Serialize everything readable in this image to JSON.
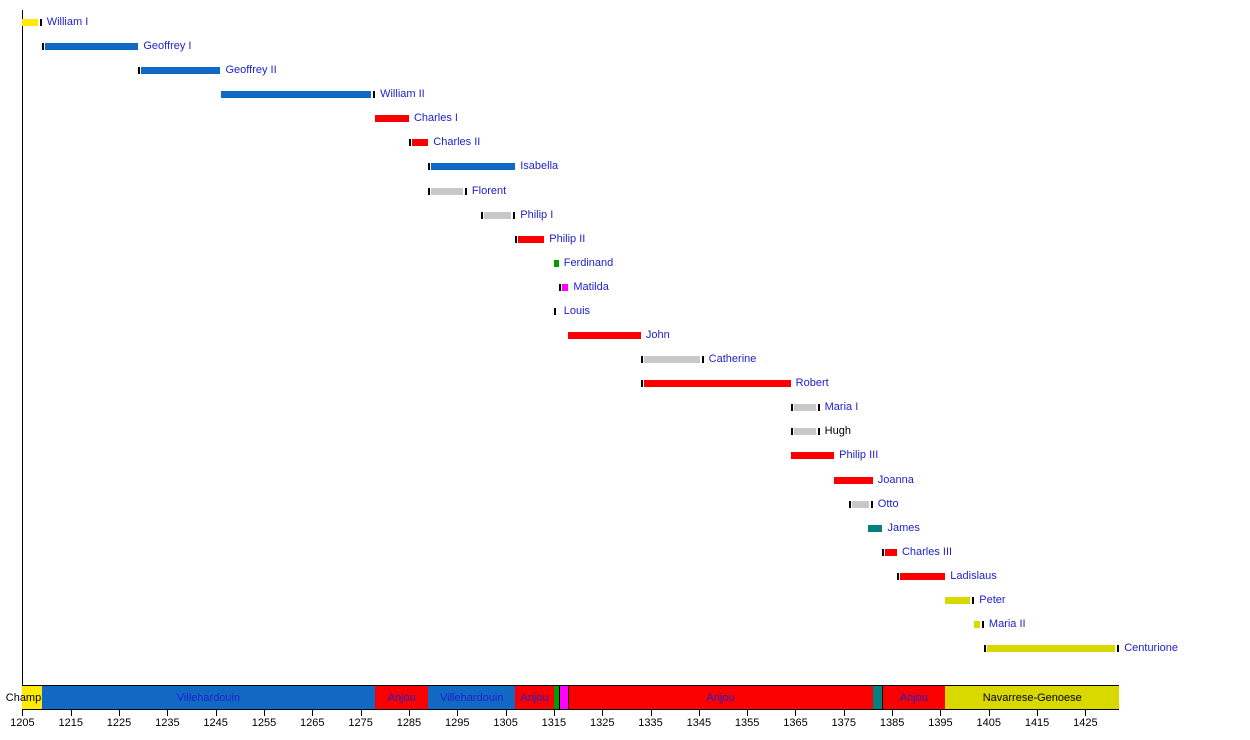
{
  "chart_data": {
    "type": "timeline",
    "x_axis": {
      "min": 1205,
      "max": 1432,
      "tick_interval": 10,
      "tick_years": [
        1205,
        1215,
        1225,
        1235,
        1245,
        1255,
        1265,
        1275,
        1285,
        1295,
        1305,
        1315,
        1325,
        1335,
        1345,
        1355,
        1365,
        1375,
        1385,
        1395,
        1405,
        1415,
        1425
      ]
    },
    "people": [
      {
        "label": "William I",
        "from": 1205,
        "till": 1209,
        "color": "champlitte_yellow",
        "label_color": "link_blue",
        "marks": "right"
      },
      {
        "label": "Geoffrey I",
        "from": 1209,
        "till": 1229,
        "color": "villehardouin_blue",
        "label_color": "link_blue",
        "marks": "left"
      },
      {
        "label": "Geoffrey II",
        "from": 1229,
        "till": 1246,
        "color": "villehardouin_blue",
        "label_color": "link_blue",
        "marks": "left"
      },
      {
        "label": "William II",
        "from": 1246,
        "till": 1278,
        "color": "villehardouin_blue",
        "label_color": "link_blue",
        "marks": "right"
      },
      {
        "label": "Charles I",
        "from": 1278,
        "till": 1285,
        "color": "anjou_red",
        "label_color": "link_blue",
        "marks": "none"
      },
      {
        "label": "Charles II",
        "from": 1285,
        "till": 1289,
        "color": "anjou_red",
        "label_color": "link_blue",
        "marks": "left"
      },
      {
        "label": "Isabella",
        "from": 1289,
        "till": 1307,
        "color": "villehardouin_blue",
        "label_color": "link_blue",
        "marks": "left"
      },
      {
        "label": "Florent",
        "from": 1289,
        "till": 1297,
        "color": "consort_gray",
        "label_color": "link_blue",
        "marks": "both"
      },
      {
        "label": "Philip I",
        "from": 1300,
        "till": 1307,
        "color": "consort_gray",
        "label_color": "link_blue",
        "marks": "both"
      },
      {
        "label": "Philip II",
        "from": 1307,
        "till": 1313,
        "color": "anjou_red",
        "label_color": "link_blue",
        "marks": "left"
      },
      {
        "label": "Ferdinand",
        "from": 1315,
        "till": 1316,
        "color": "majorca_green",
        "label_color": "link_blue",
        "marks": "none"
      },
      {
        "label": "Matilda",
        "from": 1316,
        "till": 1318,
        "color": "hainaut_magenta",
        "label_color": "link_blue",
        "marks": "left"
      },
      {
        "label": "Louis",
        "from": 1315,
        "till": 1316,
        "color": "tick_black",
        "label_color": "link_blue",
        "marks": "only"
      },
      {
        "label": "John",
        "from": 1318,
        "till": 1333,
        "color": "anjou_red",
        "label_color": "link_blue",
        "marks": "none"
      },
      {
        "label": "Catherine",
        "from": 1333,
        "till": 1346,
        "color": "consort_gray",
        "label_color": "link_blue",
        "marks": "both"
      },
      {
        "label": "Robert",
        "from": 1333,
        "till": 1364,
        "color": "anjou_red",
        "label_color": "link_blue",
        "marks": "left"
      },
      {
        "label": "Maria I",
        "from": 1364,
        "till": 1370,
        "color": "consort_gray",
        "label_color": "link_blue",
        "marks": "both"
      },
      {
        "label": "Hugh",
        "from": 1364,
        "till": 1370,
        "color": "consort_gray",
        "label_color": "plain_black",
        "marks": "both"
      },
      {
        "label": "Philip III",
        "from": 1364,
        "till": 1373,
        "color": "anjou_red",
        "label_color": "link_blue",
        "marks": "none"
      },
      {
        "label": "Joanna",
        "from": 1373,
        "till": 1381,
        "color": "anjou_red",
        "label_color": "link_blue",
        "marks": "none"
      },
      {
        "label": "Otto",
        "from": 1376,
        "till": 1381,
        "color": "consort_gray",
        "label_color": "link_blue",
        "marks": "both"
      },
      {
        "label": "James",
        "from": 1380,
        "till": 1383,
        "color": "baux_teal",
        "label_color": "link_blue",
        "marks": "none"
      },
      {
        "label": "Charles III",
        "from": 1383,
        "till": 1386,
        "color": "anjou_red",
        "label_color": "link_blue",
        "marks": "left"
      },
      {
        "label": "Ladislaus",
        "from": 1386,
        "till": 1396,
        "color": "anjou_red",
        "label_color": "link_blue",
        "marks": "left"
      },
      {
        "label": "Peter",
        "from": 1396,
        "till": 1402,
        "color": "navarrese_yellow",
        "label_color": "link_blue",
        "marks": "right"
      },
      {
        "label": "Maria II",
        "from": 1402,
        "till": 1404,
        "color": "navarrese_yellow",
        "label_color": "link_blue",
        "marks": "right"
      },
      {
        "label": "Centurione",
        "from": 1404,
        "till": 1432,
        "color": "navarrese_yellow",
        "label_color": "link_blue",
        "marks": "both"
      }
    ],
    "dynasty_band": [
      {
        "label": "Champlitte",
        "from": 1205,
        "till": 1209,
        "color": "champlitte_yellow",
        "label_color": "plain_black"
      },
      {
        "label": "Villehardouin",
        "from": 1209,
        "till": 1278,
        "color": "villehardouin_blue",
        "label_color": "link_blue"
      },
      {
        "label": "Anjou",
        "from": 1278,
        "till": 1289,
        "color": "anjou_red",
        "label_color": "link_blue"
      },
      {
        "label": "Villehardouin",
        "from": 1289,
        "till": 1307,
        "color": "villehardouin_blue",
        "label_color": "link_blue"
      },
      {
        "label": "Anjou",
        "from": 1307,
        "till": 1315,
        "color": "anjou_red",
        "label_color": "link_blue"
      },
      {
        "label": "",
        "from": 1315,
        "till": 1316,
        "color": "majorca_green",
        "label_color": "plain_black"
      },
      {
        "label": "",
        "from": 1316,
        "till": 1318,
        "color": "hainaut_magenta",
        "label_color": "plain_black"
      },
      {
        "label": "Anjou",
        "from": 1318,
        "till": 1381,
        "color": "anjou_red",
        "label_color": "link_blue"
      },
      {
        "label": "",
        "from": 1381,
        "till": 1383,
        "color": "baux_teal",
        "label_color": "plain_black"
      },
      {
        "label": "Anjou",
        "from": 1383,
        "till": 1396,
        "color": "anjou_red",
        "label_color": "link_blue"
      },
      {
        "label": "Navarrese-Genoese",
        "from": 1396,
        "till": 1432,
        "color": "navarrese_yellow",
        "label_color": "plain_black"
      }
    ],
    "palette": {
      "champlitte_yellow": "#FFEB00",
      "villehardouin_blue": "#1169C4",
      "anjou_red": "#FA0000",
      "consort_gray": "#C8C8C8",
      "majorca_green": "#009C00",
      "hainaut_magenta": "#FF00FF",
      "baux_teal": "#008080",
      "navarrese_yellow": "#D9D900",
      "tick_black": "#000000",
      "link_blue": "#2121CE",
      "plain_black": "#000000",
      "axis_black": "#000000"
    }
  }
}
